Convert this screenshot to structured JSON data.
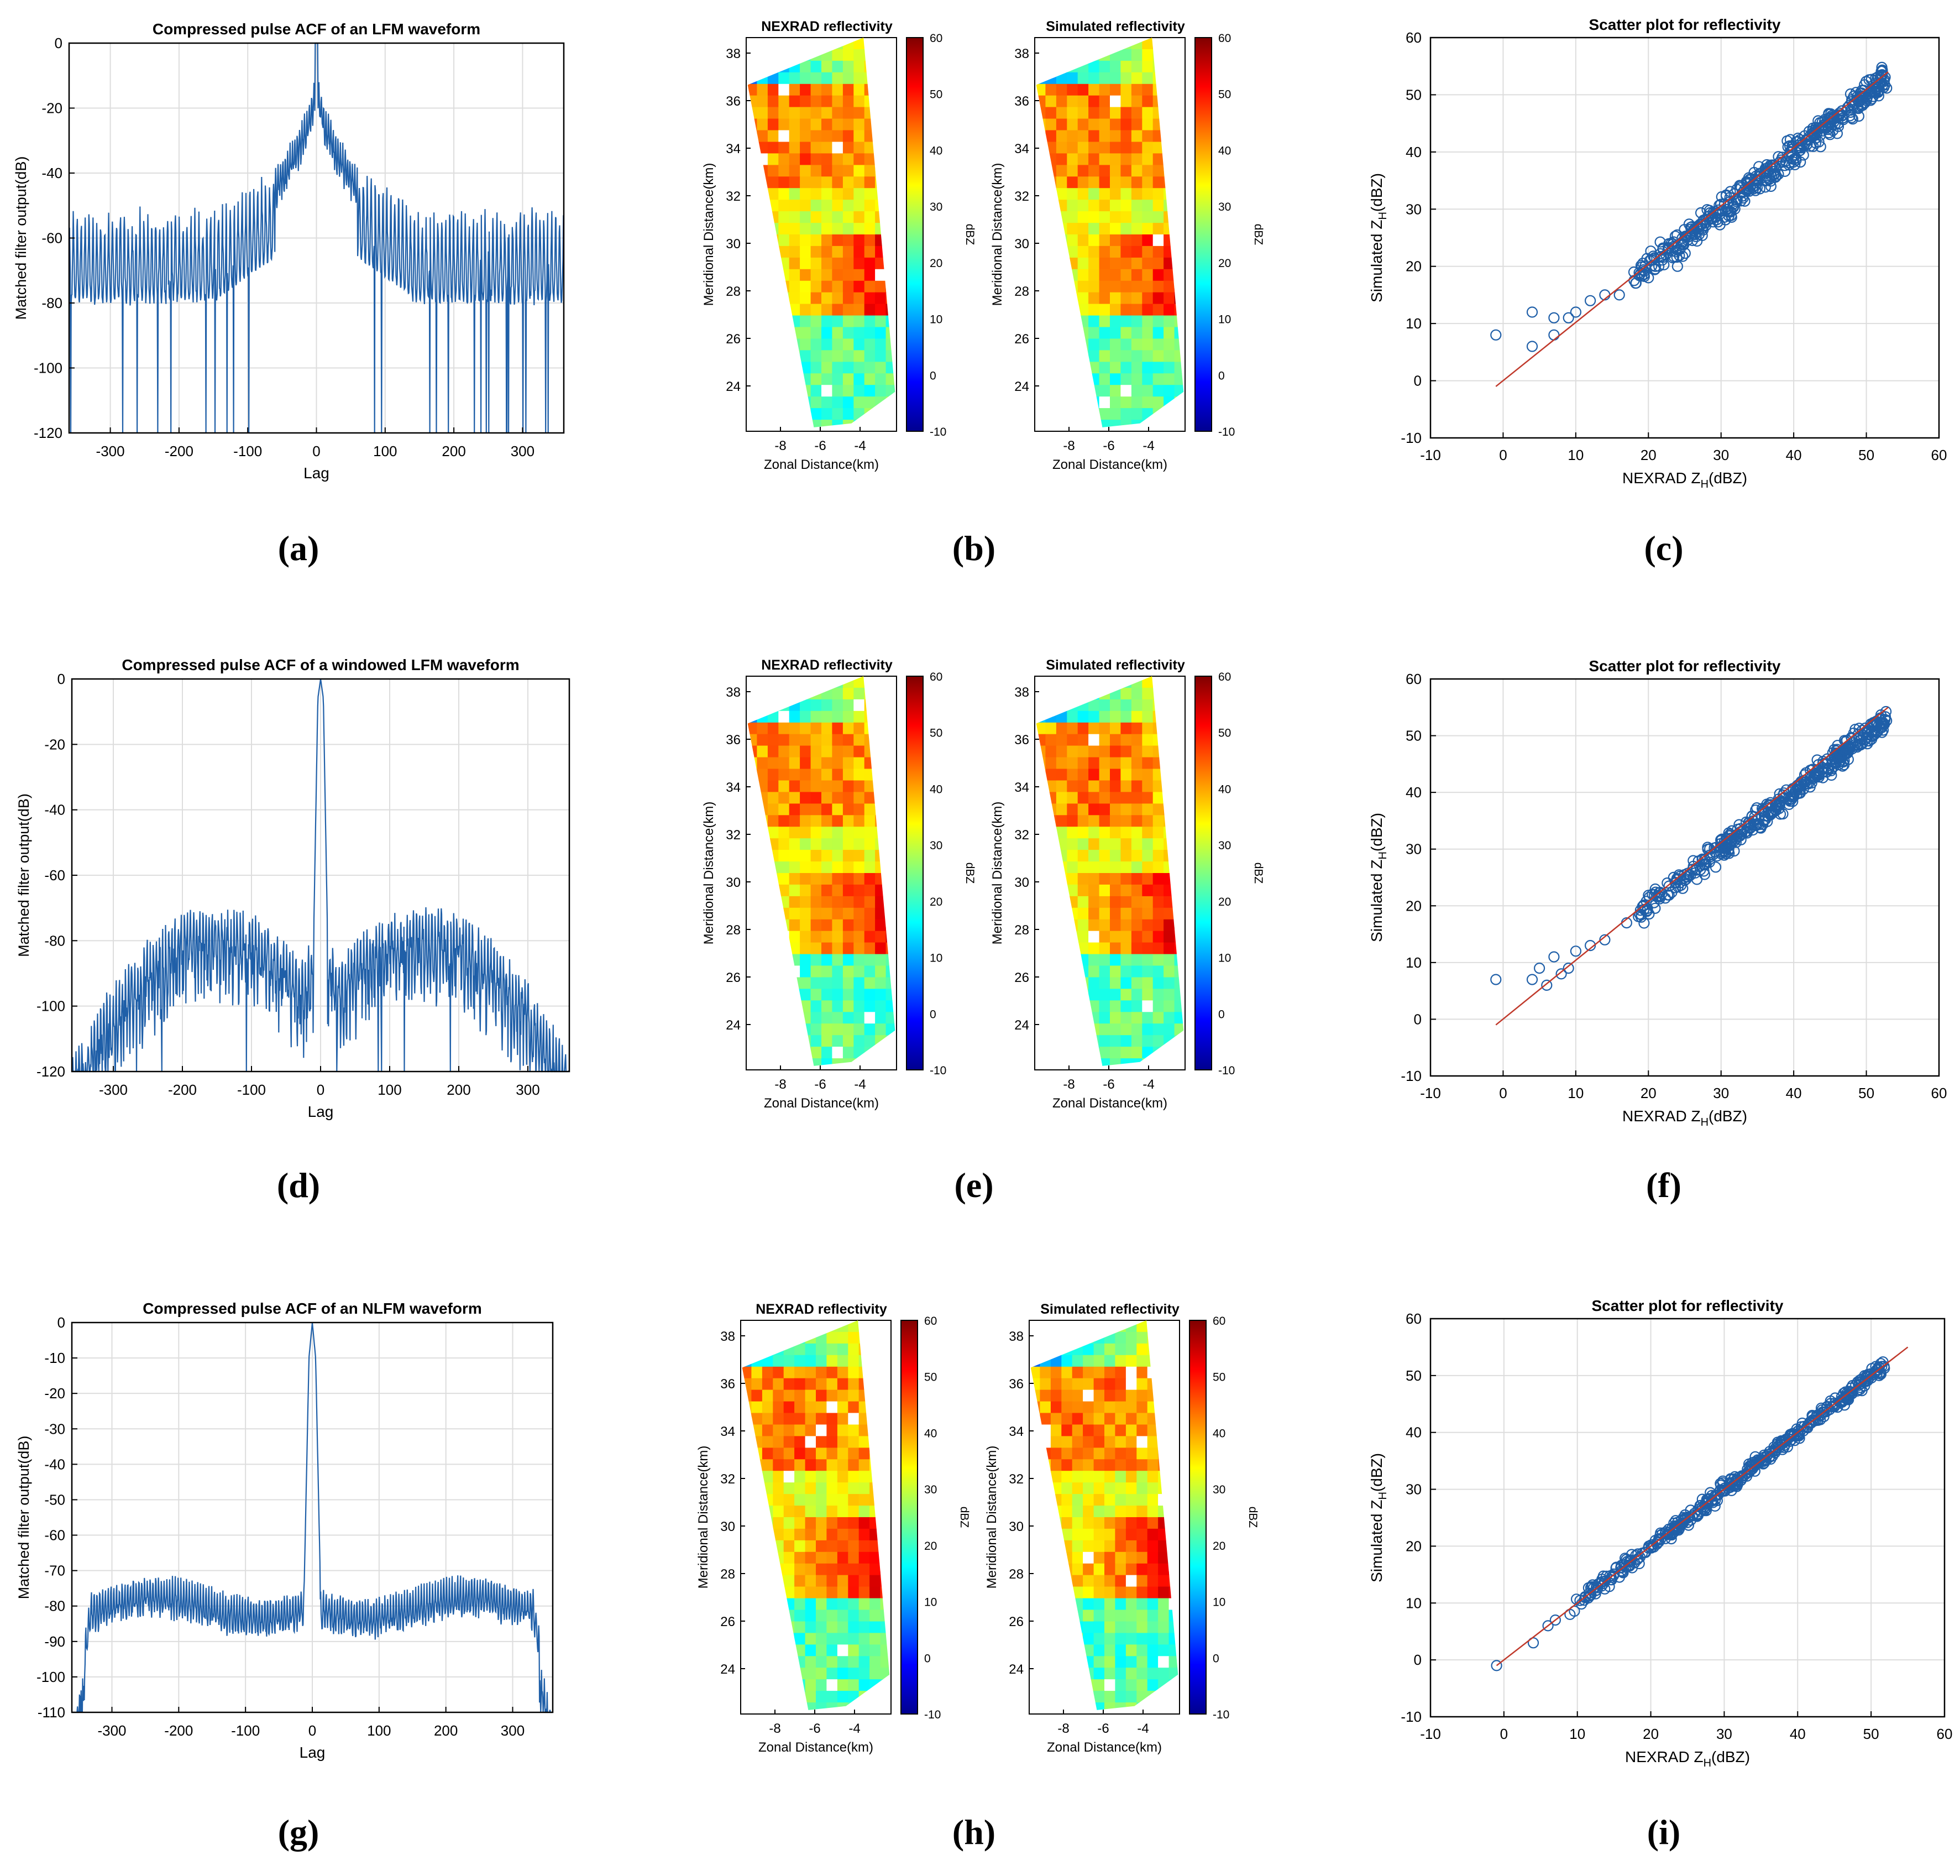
{
  "colors": {
    "acf_line": "#1f5fa8",
    "scatter_marker": "#1f5fa8",
    "fit_line": "#c0392b",
    "grid": "#dddddd",
    "axis": "#000000",
    "text": "#000000"
  },
  "colorbar_scale": {
    "min": -10,
    "max": 60,
    "ticks": [
      "60",
      "50",
      "40",
      "30",
      "20",
      "10",
      "0",
      "-10"
    ],
    "unit": "dBZ",
    "stops": [
      "#00008f",
      "#0000ff",
      "#0080ff",
      "#00ffff",
      "#80ff80",
      "#ffff00",
      "#ff8000",
      "#ff0000",
      "#800000"
    ]
  },
  "acf_axes": {
    "xlabel": "Lag",
    "ylabel": "Matched filter output(dB)",
    "xticks": [
      "-300",
      "-200",
      "-100",
      "0",
      "100",
      "200",
      "300"
    ]
  },
  "map_axes": {
    "xlabel": "Zonal Distance(km)",
    "ylabel": "Meridional Distance(km)",
    "xticks": [
      "-8",
      "-6",
      "-4"
    ],
    "yticks": [
      "38",
      "36",
      "34",
      "32",
      "30",
      "28",
      "26",
      "24"
    ]
  },
  "scatter_axes": {
    "title": "Scatter plot for reflectivity",
    "xlabel_main": "NEXRAD Z",
    "xlabel_sub": "H",
    "xlabel_unit": "(dBZ)",
    "ylabel_main": "Simulated Z",
    "ylabel_sub": "H",
    "ylabel_unit": "(dBZ)",
    "xticks": [
      "-10",
      "0",
      "10",
      "20",
      "30",
      "40",
      "50",
      "60"
    ],
    "yticks": [
      "60",
      "50",
      "40",
      "30",
      "20",
      "10",
      "0",
      "-10"
    ]
  },
  "chart_data": [
    {
      "panel": "a",
      "type": "line",
      "title": "Compressed pulse ACF of an LFM waveform",
      "xlabel": "Lag",
      "ylabel": "Matched filter output(dB)",
      "xlim": [
        -360,
        360
      ],
      "ylim": [
        -120,
        0
      ],
      "yticks": [
        "0",
        "-20",
        "-40",
        "-60",
        "-80",
        "-100",
        "-120"
      ],
      "yticks_values": [
        0,
        -20,
        -40,
        -60,
        -80,
        -100,
        -120
      ],
      "waveform": "lfm",
      "peak_db": 0,
      "sidelobe_peak_db": -38,
      "sidelobe_floor_db": -52,
      "null_depth_db": -120
    },
    {
      "panel": "b",
      "type": "heatmap",
      "pair": [
        {
          "title": "NEXRAD reflectivity",
          "seed": 11
        },
        {
          "title": "Simulated reflectivity",
          "seed": 12
        }
      ],
      "xlabel": "Zonal Distance(km)",
      "ylabel": "Meridional Distance(km)",
      "colorbar_label": "dBZ",
      "clim": [
        -10,
        60
      ]
    },
    {
      "panel": "c",
      "type": "scatter",
      "title": "Scatter plot for reflectivity",
      "xlim": [
        -10,
        60
      ],
      "ylim": [
        -10,
        60
      ],
      "fit_line": [
        [
          -1,
          -1
        ],
        [
          53,
          54
        ]
      ],
      "outliers": [
        [
          -1,
          8
        ],
        [
          4,
          12
        ],
        [
          4,
          6
        ],
        [
          7,
          8
        ],
        [
          7,
          11
        ],
        [
          9,
          11
        ],
        [
          10,
          12
        ],
        [
          12,
          14
        ],
        [
          14,
          15
        ],
        [
          16,
          15
        ],
        [
          18,
          19
        ],
        [
          20,
          18
        ],
        [
          22,
          23
        ],
        [
          24,
          20
        ]
      ],
      "cluster_range": [
        18,
        53
      ],
      "spread": 1.4
    },
    {
      "panel": "d",
      "type": "line",
      "title": "Compressed pulse ACF of a windowed LFM waveform",
      "xlabel": "Lag",
      "ylabel": "Matched filter output(dB)",
      "xlim": [
        -360,
        360
      ],
      "ylim": [
        -120,
        0
      ],
      "yticks": [
        "0",
        "-20",
        "-40",
        "-60",
        "-80",
        "-100",
        "-120"
      ],
      "yticks_values": [
        0,
        -20,
        -40,
        -60,
        -80,
        -100,
        -120
      ],
      "waveform": "windowed",
      "peak_db": 0,
      "sidelobe_peak_db": -69,
      "sidelobe_edge_db": -110,
      "null_depth_db": -120
    },
    {
      "panel": "e",
      "type": "heatmap",
      "pair": [
        {
          "title": "NEXRAD reflectivity",
          "seed": 21
        },
        {
          "title": "Simulated reflectivity",
          "seed": 22
        }
      ],
      "xlabel": "Zonal Distance(km)",
      "ylabel": "Meridional Distance(km)",
      "colorbar_label": "dBZ",
      "clim": [
        -10,
        60
      ]
    },
    {
      "panel": "f",
      "type": "scatter",
      "title": "Scatter plot for reflectivity",
      "xlim": [
        -10,
        60
      ],
      "ylim": [
        -10,
        60
      ],
      "fit_line": [
        [
          -1,
          -1
        ],
        [
          53,
          55
        ]
      ],
      "outliers": [
        [
          -1,
          7
        ],
        [
          4,
          7
        ],
        [
          5,
          9
        ],
        [
          6,
          6
        ],
        [
          7,
          11
        ],
        [
          8,
          8
        ],
        [
          9,
          9
        ],
        [
          10,
          12
        ],
        [
          12,
          13
        ],
        [
          14,
          14
        ],
        [
          17,
          17
        ],
        [
          19,
          18
        ]
      ],
      "cluster_range": [
        18,
        53
      ],
      "spread": 1.2
    },
    {
      "panel": "g",
      "type": "line",
      "title": "Compressed pulse ACF of an NLFM waveform",
      "xlabel": "Lag",
      "ylabel": "Matched filter output(dB)",
      "xlim": [
        -360,
        360
      ],
      "ylim": [
        -110,
        0
      ],
      "yticks": [
        "0",
        "-10",
        "-20",
        "-30",
        "-40",
        "-50",
        "-60",
        "-70",
        "-80",
        "-90",
        "-100",
        "-110"
      ],
      "yticks_values": [
        0,
        -10,
        -20,
        -30,
        -40,
        -50,
        -60,
        -70,
        -80,
        -90,
        -100,
        -110
      ],
      "waveform": "nlfm",
      "peak_db": 0,
      "sidelobe_peak_db": -74,
      "sidelobe_floor_db": -85,
      "null_depth_db": -110
    },
    {
      "panel": "h",
      "type": "heatmap",
      "pair": [
        {
          "title": "NEXRAD reflectivity",
          "seed": 31
        },
        {
          "title": "Simulated reflectivity",
          "seed": 32
        }
      ],
      "xlabel": "Zonal Distance(km)",
      "ylabel": "Meridional Distance(km)",
      "colorbar_label": "dBZ",
      "clim": [
        -10,
        60
      ]
    },
    {
      "panel": "i",
      "type": "scatter",
      "title": "Scatter plot for reflectivity",
      "xlim": [
        -10,
        60
      ],
      "ylim": [
        -10,
        60
      ],
      "fit_line": [
        [
          -1,
          -1
        ],
        [
          55,
          55
        ]
      ],
      "outliers": [
        [
          -1,
          -1
        ],
        [
          4,
          3
        ],
        [
          6,
          6
        ],
        [
          7,
          7
        ],
        [
          9,
          8
        ]
      ],
      "cluster_range": [
        9,
        52
      ],
      "spread": 0.8
    }
  ],
  "panel_labels": [
    "(a)",
    "(b)",
    "(c)",
    "(d)",
    "(e)",
    "(f)",
    "(g)",
    "(h)",
    "(i)"
  ]
}
